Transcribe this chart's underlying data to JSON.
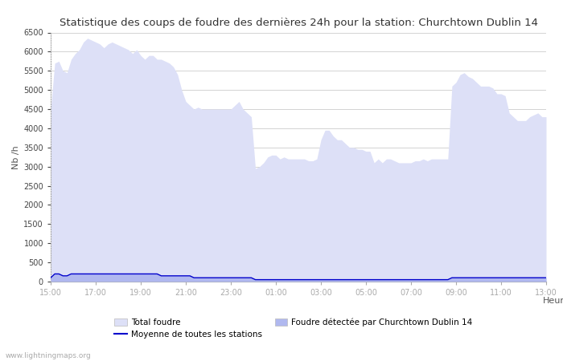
{
  "title": "Statistique des coups de foudre des dernières 24h pour la station: Churchtown Dublin 14",
  "xlabel": "Heure",
  "ylabel": "Nb /h",
  "background_color": "#ffffff",
  "grid_color": "#cccccc",
  "fill_color_total": "#dde0f7",
  "fill_color_local": "#b0b8ef",
  "line_color_moyenne": "#0000cc",
  "x_ticks": [
    "15:00",
    "17:00",
    "19:00",
    "21:00",
    "23:00",
    "01:00",
    "03:00",
    "05:00",
    "07:00",
    "09:00",
    "11:00",
    "13:00"
  ],
  "ylim": [
    0,
    6500
  ],
  "yticks": [
    0,
    500,
    1000,
    1500,
    2000,
    2500,
    3000,
    3500,
    4000,
    4500,
    5000,
    5500,
    6000,
    6500
  ],
  "legend_total": "Total foudre",
  "legend_moyenne": "Moyenne de toutes les stations",
  "legend_local": "Foudre détectée par Churchtown Dublin 14",
  "watermark": "www.lightningmaps.org",
  "total_foudre": [
    4500,
    5700,
    5750,
    5500,
    5450,
    5800,
    5950,
    6050,
    6250,
    6350,
    6300,
    6250,
    6200,
    6100,
    6200,
    6250,
    6200,
    6150,
    6100,
    6050,
    5950,
    6050,
    5900,
    5800,
    5900,
    5900,
    5800,
    5800,
    5750,
    5700,
    5600,
    5400,
    5000,
    4700,
    4600,
    4500,
    4550,
    4500,
    4500,
    4500,
    4500,
    4500,
    4500,
    4500,
    4500,
    4600,
    4700,
    4500,
    4400,
    4300,
    2950,
    3000,
    3100,
    3250,
    3300,
    3300,
    3200,
    3250,
    3200,
    3200,
    3200,
    3200,
    3200,
    3150,
    3150,
    3200,
    3700,
    3950,
    3950,
    3800,
    3700,
    3700,
    3600,
    3500,
    3500,
    3450,
    3450,
    3400,
    3400,
    3100,
    3200,
    3100,
    3200,
    3200,
    3150,
    3100,
    3100,
    3100,
    3100,
    3150,
    3150,
    3200,
    3150,
    3200,
    3200,
    3200,
    3200,
    3200,
    5100,
    5200,
    5400,
    5450,
    5350,
    5300,
    5200,
    5100,
    5100,
    5100,
    5050,
    4900,
    4900,
    4850,
    4400,
    4300,
    4200,
    4200,
    4200,
    4300,
    4350,
    4400,
    4300,
    4300
  ],
  "local_foudre": [
    100,
    200,
    200,
    150,
    150,
    200,
    200,
    200,
    200,
    200,
    200,
    200,
    200,
    200,
    200,
    200,
    200,
    200,
    200,
    200,
    200,
    200,
    200,
    200,
    200,
    200,
    200,
    150,
    150,
    150,
    150,
    150,
    150,
    150,
    150,
    100,
    100,
    100,
    100,
    100,
    100,
    100,
    100,
    100,
    100,
    100,
    100,
    100,
    100,
    100,
    50,
    50,
    50,
    50,
    50,
    50,
    50,
    50,
    50,
    50,
    50,
    50,
    50,
    50,
    50,
    50,
    50,
    50,
    50,
    50,
    50,
    50,
    50,
    50,
    50,
    50,
    50,
    50,
    50,
    50,
    50,
    50,
    50,
    50,
    50,
    50,
    50,
    50,
    50,
    50,
    50,
    50,
    50,
    50,
    50,
    50,
    50,
    50,
    100,
    100,
    100,
    100,
    100,
    100,
    100,
    100,
    100,
    100,
    100,
    100,
    100,
    100,
    100,
    100,
    100,
    100,
    100,
    100,
    100,
    100,
    100,
    100
  ],
  "moyenne": [
    100,
    200,
    200,
    150,
    150,
    200,
    200,
    200,
    200,
    200,
    200,
    200,
    200,
    200,
    200,
    200,
    200,
    200,
    200,
    200,
    200,
    200,
    200,
    200,
    200,
    200,
    200,
    150,
    150,
    150,
    150,
    150,
    150,
    150,
    150,
    100,
    100,
    100,
    100,
    100,
    100,
    100,
    100,
    100,
    100,
    100,
    100,
    100,
    100,
    100,
    50,
    50,
    50,
    50,
    50,
    50,
    50,
    50,
    50,
    50,
    50,
    50,
    50,
    50,
    50,
    50,
    50,
    50,
    50,
    50,
    50,
    50,
    50,
    50,
    50,
    50,
    50,
    50,
    50,
    50,
    50,
    50,
    50,
    50,
    50,
    50,
    50,
    50,
    50,
    50,
    50,
    50,
    50,
    50,
    50,
    50,
    50,
    50,
    100,
    100,
    100,
    100,
    100,
    100,
    100,
    100,
    100,
    100,
    100,
    100,
    100,
    100,
    100,
    100,
    100,
    100,
    100,
    100,
    100,
    100,
    100,
    100
  ]
}
